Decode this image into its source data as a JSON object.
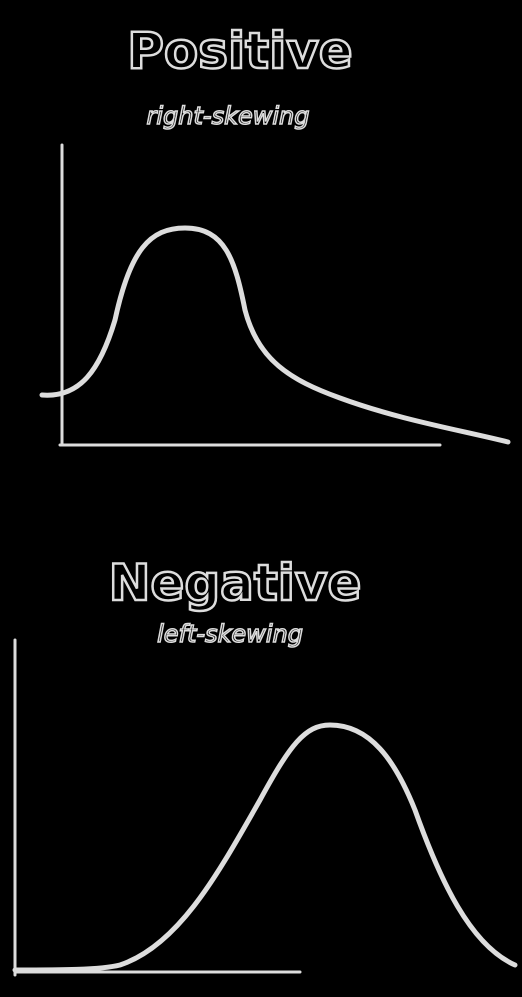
{
  "panels": [
    {
      "title": "Positive",
      "subtitle": "right-skewing"
    },
    {
      "title": "Negative",
      "subtitle": "left-skewing"
    }
  ]
}
